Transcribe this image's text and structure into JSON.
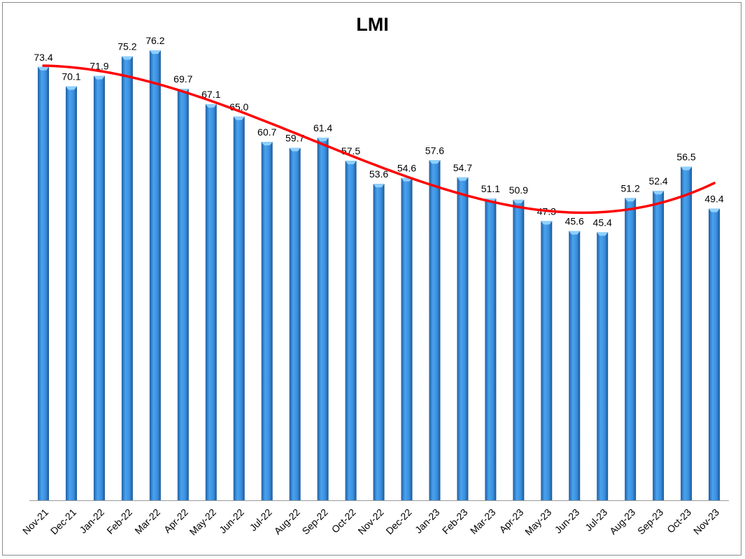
{
  "chart_data": {
    "type": "bar",
    "title": "LMI",
    "xlabel": "",
    "ylabel": "",
    "ylim": [
      0,
      80
    ],
    "grid": false,
    "legend": "none",
    "categories": [
      "Nov-21",
      "Dec-21",
      "Jan-22",
      "Feb-22",
      "Mar-22",
      "Apr-22",
      "May-22",
      "Jun-22",
      "Jul-22",
      "Aug-22",
      "Sep-22",
      "Oct-22",
      "Nov-22",
      "Dec-22",
      "Jan-23",
      "Feb-23",
      "Mar-23",
      "Apr-23",
      "May-23",
      "Jun-23",
      "Jul-23",
      "Aug-23",
      "Sep-23",
      "Oct-23",
      "Nov-23"
    ],
    "series": [
      {
        "values": [
          73.4,
          70.1,
          71.9,
          75.2,
          76.2,
          69.7,
          67.1,
          65.0,
          60.7,
          59.7,
          61.4,
          57.5,
          53.6,
          54.6,
          57.6,
          54.7,
          51.1,
          50.9,
          47.3,
          45.6,
          45.4,
          51.2,
          52.4,
          56.5,
          49.4
        ],
        "labels": [
          "73.4",
          "70.1",
          "71.9",
          "75.2",
          "76.2",
          "69.7",
          "67.1",
          "65.0",
          "60.7",
          "59.7",
          "61.4",
          "57.5",
          "53.6",
          "54.6",
          "57.6",
          "54.7",
          "51.1",
          "50.9",
          "47.3",
          "45.6",
          "45.4",
          "51.2",
          "52.4",
          "56.5",
          "49.4"
        ],
        "color": "#3a8fde"
      }
    ],
    "trendline": {
      "type": "polynomial",
      "color": "#ff0000"
    }
  }
}
